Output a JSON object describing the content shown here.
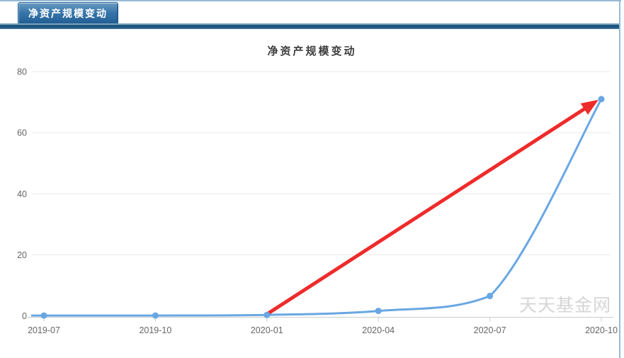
{
  "window": {
    "tab_label": "净资产规模变动"
  },
  "chart_data": {
    "type": "line",
    "title": "净资产规模变动",
    "categories": [
      "2019-07",
      "2019-10",
      "2020-01",
      "2020-04",
      "2020-07",
      "2020-10"
    ],
    "series": [
      {
        "name": "净资产规模变动",
        "color": "#69a7e3",
        "values": [
          0.1,
          0.1,
          0.3,
          1.6,
          6.5,
          71
        ]
      }
    ],
    "xlabel": "",
    "ylabel": "",
    "ylim": [
      0,
      80
    ],
    "yticks": [
      0,
      20,
      40,
      60,
      80
    ],
    "grid": true,
    "legend_position": "none",
    "annotations": [
      {
        "type": "arrow",
        "color": "#ee2b2b",
        "from_category": "2020-01",
        "from_value": 0.3,
        "to_category": "2020-10",
        "to_value": 71
      }
    ]
  },
  "watermark": {
    "text": "天天基金网"
  },
  "theme": {
    "panel_border": "#96bcd4",
    "tab_top": "#6b9cc2",
    "tab_mid": "#3876ab",
    "tab_bottom": "#1f5d92",
    "bar_light": "#7ba3bd",
    "bar_dark": "#1d567f",
    "bar_edge": "#49779c",
    "grid_color": "#e8e8e8",
    "axis_color": "#cccccc",
    "label_color": "#666666",
    "title_color": "#3d3d3d",
    "watermark_color": "#d6d6d6"
  }
}
